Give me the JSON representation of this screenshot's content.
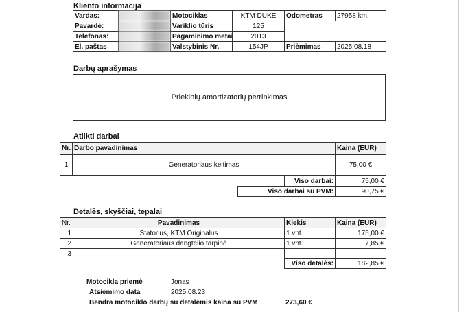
{
  "client": {
    "title": "Klientoinformacija",
    "title_text": "Kliento informacija",
    "name_label": "Vardas:",
    "surname_label": "Pavardė:",
    "phone_label": "Telefonas:",
    "email_label": "El. paštas",
    "moto_label": "Motociklas",
    "moto": "KTM DUKE",
    "engine_label": "Variklio tūris",
    "engine": "125",
    "year_label": "Pagaminimo metai",
    "year": "2013",
    "plate_label": "Valstybinis Nr.",
    "plate": "154JP",
    "odo_label": "Odometras",
    "odo": "27958 km.",
    "received_label": "Priėmimas",
    "received": "2025.08.18"
  },
  "description": {
    "title": "Darbų aprašymas",
    "text": "Priekinių amortizatorių perrinkimas"
  },
  "works": {
    "title": "Atlikti darbai",
    "col_nr": "Nr.",
    "col_name": "Darbo pavadinimas",
    "col_price": "Kaina (EUR)",
    "rows": [
      {
        "nr": "1",
        "name": "Generatoriaus keitimas",
        "price": "75,00 €"
      }
    ],
    "total_label": "Viso darbai:",
    "total": "75,00 €",
    "total_vat_label": "Viso darbai su PVM:",
    "total_vat": "90,75 €"
  },
  "parts": {
    "title": "Detalės, skyščiai, tepalai",
    "col_nr": "Nr.",
    "col_name": "Pavadinimas",
    "col_qty": "Kiekis",
    "col_price": "Kaina (EUR)",
    "rows": [
      {
        "nr": "1",
        "name": "Statorius, KTM Originalus",
        "qty": "1 vnt.",
        "price": "175,00 €"
      },
      {
        "nr": "2",
        "name": "Generatoriaus dangtelio tarpinė",
        "qty": "1 vnt.",
        "price": "7,85 €"
      },
      {
        "nr": "3",
        "name": "",
        "qty": "",
        "price": ""
      }
    ],
    "total_label": "Viso detalės:",
    "total": "182,85 €"
  },
  "footer": {
    "accepted_label": "Motociklą priemė",
    "accepted": "Jonas",
    "pickup_label": "Atsiėmimo data",
    "pickup": "2025.08.23",
    "grand_label": "Bendra motociklo darbų su detalėmis kaina su PVM",
    "grand": "273,60 €"
  }
}
